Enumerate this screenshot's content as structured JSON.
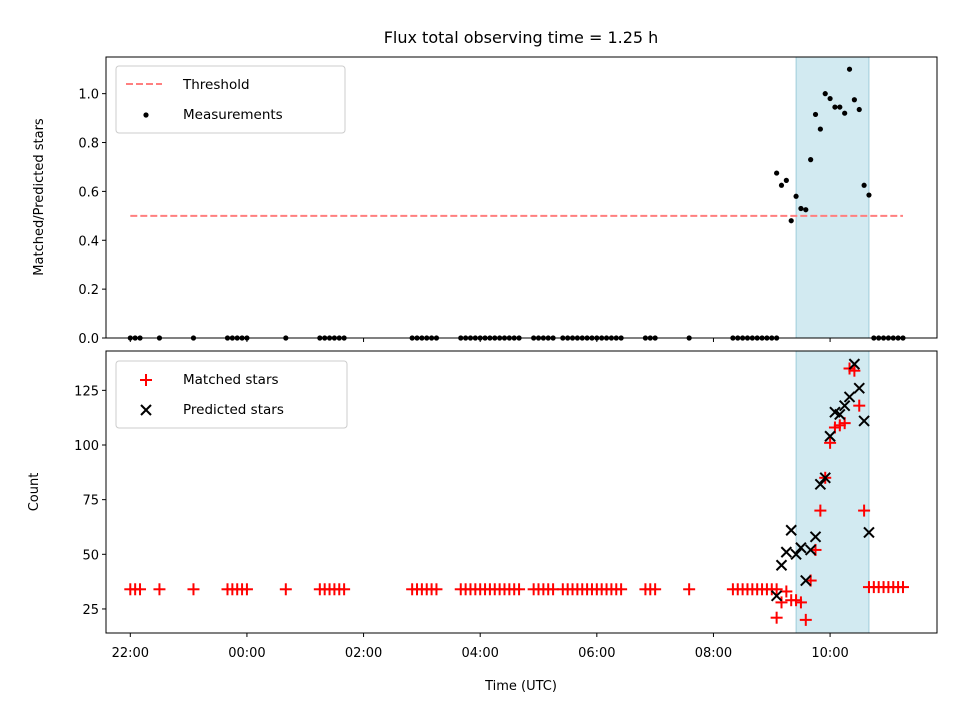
{
  "chart_data": [
    {
      "type": "scatter",
      "title": "Flux total observing time = 1.25 h",
      "xlabel": "",
      "ylabel": "Matched/Predicted stars",
      "xlim": [
        "21:35",
        "11:50"
      ],
      "ylim": [
        0,
        1.15
      ],
      "y_ticks": [
        "0.0",
        "0.2",
        "0.4",
        "0.6",
        "0.8",
        "1.0"
      ],
      "legend_position": "top-left",
      "grid": false,
      "shaded_interval": {
        "start": "09:25",
        "end": "10:40",
        "color": "#add8e6"
      },
      "series": [
        {
          "name": "Threshold",
          "style": "dashed-line",
          "color": "#ff7f7f",
          "points": [
            [
              "22:00",
              0.5
            ],
            [
              "11:15",
              0.5
            ]
          ]
        },
        {
          "name": "Measurements",
          "style": "dot",
          "color": "#000000",
          "points": [
            [
              "22:00",
              0
            ],
            [
              "22:05",
              0
            ],
            [
              "22:10",
              0
            ],
            [
              "22:30",
              0
            ],
            [
              "23:05",
              0
            ],
            [
              "23:40",
              0
            ],
            [
              "23:45",
              0
            ],
            [
              "23:50",
              0
            ],
            [
              "23:55",
              0
            ],
            [
              "00:00",
              0
            ],
            [
              "00:40",
              0
            ],
            [
              "01:15",
              0
            ],
            [
              "01:20",
              0
            ],
            [
              "01:25",
              0
            ],
            [
              "01:30",
              0
            ],
            [
              "01:35",
              0
            ],
            [
              "01:40",
              0
            ],
            [
              "02:50",
              0
            ],
            [
              "02:55",
              0
            ],
            [
              "03:00",
              0
            ],
            [
              "03:05",
              0
            ],
            [
              "03:10",
              0
            ],
            [
              "03:15",
              0
            ],
            [
              "03:40",
              0
            ],
            [
              "03:45",
              0
            ],
            [
              "03:50",
              0
            ],
            [
              "03:55",
              0
            ],
            [
              "04:00",
              0
            ],
            [
              "04:05",
              0
            ],
            [
              "04:10",
              0
            ],
            [
              "04:15",
              0
            ],
            [
              "04:20",
              0
            ],
            [
              "04:25",
              0
            ],
            [
              "04:30",
              0
            ],
            [
              "04:35",
              0
            ],
            [
              "04:40",
              0
            ],
            [
              "04:55",
              0
            ],
            [
              "05:00",
              0
            ],
            [
              "05:05",
              0
            ],
            [
              "05:10",
              0
            ],
            [
              "05:15",
              0
            ],
            [
              "05:25",
              0
            ],
            [
              "05:30",
              0
            ],
            [
              "05:35",
              0
            ],
            [
              "05:40",
              0
            ],
            [
              "05:45",
              0
            ],
            [
              "05:50",
              0
            ],
            [
              "05:55",
              0
            ],
            [
              "06:00",
              0
            ],
            [
              "06:05",
              0
            ],
            [
              "06:10",
              0
            ],
            [
              "06:15",
              0
            ],
            [
              "06:20",
              0
            ],
            [
              "06:25",
              0
            ],
            [
              "06:50",
              0
            ],
            [
              "06:55",
              0
            ],
            [
              "07:00",
              0
            ],
            [
              "07:35",
              0
            ],
            [
              "08:20",
              0
            ],
            [
              "08:25",
              0
            ],
            [
              "08:30",
              0
            ],
            [
              "08:35",
              0
            ],
            [
              "08:40",
              0
            ],
            [
              "08:45",
              0
            ],
            [
              "08:50",
              0
            ],
            [
              "08:55",
              0
            ],
            [
              "09:00",
              0
            ],
            [
              "09:05",
              0
            ],
            [
              "09:05",
              0.675
            ],
            [
              "09:10",
              0.625
            ],
            [
              "09:15",
              0.645
            ],
            [
              "09:20",
              0.48
            ],
            [
              "09:25",
              0.58
            ],
            [
              "09:30",
              0.53
            ],
            [
              "09:35",
              0.525
            ],
            [
              "09:40",
              0.73
            ],
            [
              "09:45",
              0.915
            ],
            [
              "09:50",
              0.855
            ],
            [
              "09:55",
              1.0
            ],
            [
              "10:00",
              0.98
            ],
            [
              "10:05",
              0.945
            ],
            [
              "10:10",
              0.945
            ],
            [
              "10:15",
              0.92
            ],
            [
              "10:20",
              1.1
            ],
            [
              "10:25",
              0.975
            ],
            [
              "10:30",
              0.935
            ],
            [
              "10:35",
              0.625
            ],
            [
              "10:40",
              0.585
            ],
            [
              "10:45",
              0
            ],
            [
              "10:50",
              0
            ],
            [
              "10:55",
              0
            ],
            [
              "11:00",
              0
            ],
            [
              "11:05",
              0
            ],
            [
              "11:10",
              0
            ],
            [
              "11:15",
              0
            ]
          ]
        }
      ]
    },
    {
      "type": "scatter",
      "title": "",
      "xlabel": "Time (UTC)",
      "ylabel": "Count",
      "xlim": [
        "21:35",
        "11:50"
      ],
      "ylim": [
        14,
        143
      ],
      "x_ticks": [
        "22:00",
        "00:00",
        "02:00",
        "04:00",
        "06:00",
        "08:00",
        "10:00"
      ],
      "y_ticks": [
        "25",
        "50",
        "75",
        "100",
        "125"
      ],
      "legend_position": "top-left",
      "grid": false,
      "shaded_interval": {
        "start": "09:25",
        "end": "10:40",
        "color": "#add8e6"
      },
      "series": [
        {
          "name": "Matched stars",
          "style": "plus",
          "color": "#ff0000",
          "points": [
            [
              "22:00",
              34
            ],
            [
              "22:05",
              34
            ],
            [
              "22:10",
              34
            ],
            [
              "22:30",
              34
            ],
            [
              "23:05",
              34
            ],
            [
              "23:40",
              34
            ],
            [
              "23:45",
              34
            ],
            [
              "23:50",
              34
            ],
            [
              "23:55",
              34
            ],
            [
              "00:00",
              34
            ],
            [
              "00:40",
              34
            ],
            [
              "01:15",
              34
            ],
            [
              "01:20",
              34
            ],
            [
              "01:25",
              34
            ],
            [
              "01:30",
              34
            ],
            [
              "01:35",
              34
            ],
            [
              "01:40",
              34
            ],
            [
              "02:50",
              34
            ],
            [
              "02:55",
              34
            ],
            [
              "03:00",
              34
            ],
            [
              "03:05",
              34
            ],
            [
              "03:10",
              34
            ],
            [
              "03:15",
              34
            ],
            [
              "03:40",
              34
            ],
            [
              "03:45",
              34
            ],
            [
              "03:50",
              34
            ],
            [
              "03:55",
              34
            ],
            [
              "04:00",
              34
            ],
            [
              "04:05",
              34
            ],
            [
              "04:10",
              34
            ],
            [
              "04:15",
              34
            ],
            [
              "04:20",
              34
            ],
            [
              "04:25",
              34
            ],
            [
              "04:30",
              34
            ],
            [
              "04:35",
              34
            ],
            [
              "04:40",
              34
            ],
            [
              "04:55",
              34
            ],
            [
              "05:00",
              34
            ],
            [
              "05:05",
              34
            ],
            [
              "05:10",
              34
            ],
            [
              "05:15",
              34
            ],
            [
              "05:25",
              34
            ],
            [
              "05:30",
              34
            ],
            [
              "05:35",
              34
            ],
            [
              "05:40",
              34
            ],
            [
              "05:45",
              34
            ],
            [
              "05:50",
              34
            ],
            [
              "05:55",
              34
            ],
            [
              "06:00",
              34
            ],
            [
              "06:05",
              34
            ],
            [
              "06:10",
              34
            ],
            [
              "06:15",
              34
            ],
            [
              "06:20",
              34
            ],
            [
              "06:25",
              34
            ],
            [
              "06:50",
              34
            ],
            [
              "06:55",
              34
            ],
            [
              "07:00",
              34
            ],
            [
              "07:35",
              34
            ],
            [
              "08:20",
              34
            ],
            [
              "08:25",
              34
            ],
            [
              "08:30",
              34
            ],
            [
              "08:35",
              34
            ],
            [
              "08:40",
              34
            ],
            [
              "08:45",
              34
            ],
            [
              "08:50",
              34
            ],
            [
              "08:55",
              34
            ],
            [
              "09:00",
              34
            ],
            [
              "09:05",
              34
            ],
            [
              "09:05",
              21
            ],
            [
              "09:10",
              28
            ],
            [
              "09:15",
              33
            ],
            [
              "09:20",
              29
            ],
            [
              "09:25",
              29
            ],
            [
              "09:30",
              28
            ],
            [
              "09:35",
              20
            ],
            [
              "09:40",
              38
            ],
            [
              "09:45",
              52
            ],
            [
              "09:50",
              70
            ],
            [
              "09:55",
              85
            ],
            [
              "10:00",
              101
            ],
            [
              "10:05",
              108
            ],
            [
              "10:10",
              109
            ],
            [
              "10:15",
              110
            ],
            [
              "10:20",
              135
            ],
            [
              "10:25",
              134
            ],
            [
              "10:30",
              118
            ],
            [
              "10:35",
              70
            ],
            [
              "10:40",
              35
            ],
            [
              "10:45",
              35
            ],
            [
              "10:50",
              35
            ],
            [
              "10:55",
              35
            ],
            [
              "11:00",
              35
            ],
            [
              "11:05",
              35
            ],
            [
              "11:10",
              35
            ],
            [
              "11:15",
              35
            ]
          ]
        },
        {
          "name": "Predicted stars",
          "style": "x",
          "color": "#000000",
          "points": [
            [
              "09:05",
              31
            ],
            [
              "09:10",
              45
            ],
            [
              "09:15",
              51
            ],
            [
              "09:20",
              61
            ],
            [
              "09:25",
              50
            ],
            [
              "09:30",
              53
            ],
            [
              "09:35",
              38
            ],
            [
              "09:40",
              52
            ],
            [
              "09:45",
              58
            ],
            [
              "09:50",
              82
            ],
            [
              "09:55",
              85
            ],
            [
              "10:00",
              104
            ],
            [
              "10:05",
              115
            ],
            [
              "10:10",
              114
            ],
            [
              "10:15",
              118
            ],
            [
              "10:20",
              122
            ],
            [
              "10:25",
              137
            ],
            [
              "10:30",
              126
            ],
            [
              "10:35",
              111
            ],
            [
              "10:40",
              60
            ]
          ]
        }
      ]
    }
  ]
}
